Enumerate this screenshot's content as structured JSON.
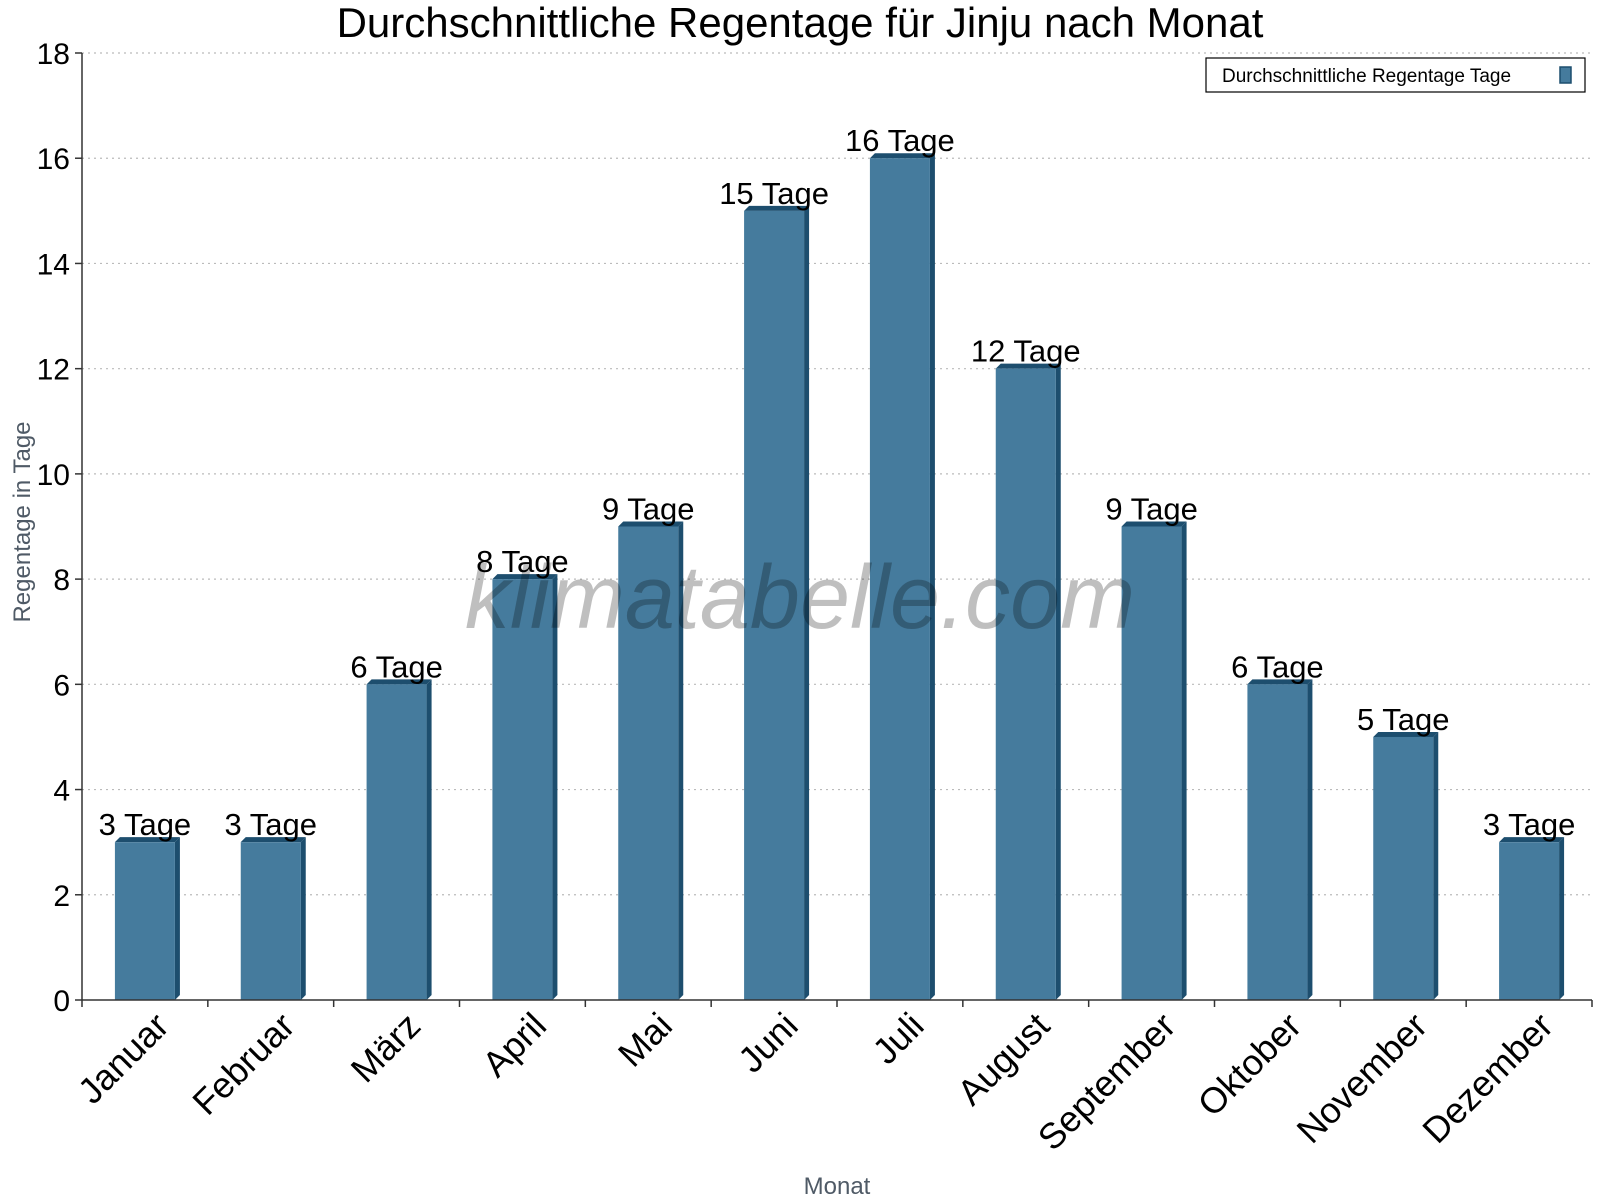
{
  "watermark": "klimatabelle.com",
  "colors": {
    "bar": "#457b9d",
    "bar_dark": "#1d4e6e",
    "grid": "#bbbbbb",
    "axis": "#333333"
  },
  "chart_data": {
    "type": "bar",
    "title": "Durchschnittliche Regentage für Jinju nach Monat",
    "xlabel": "Monat",
    "ylabel": "Regentage in Tage",
    "ylim": [
      0,
      18
    ],
    "yticks": [
      0,
      2,
      4,
      6,
      8,
      10,
      12,
      14,
      16,
      18
    ],
    "grid": true,
    "legend_position": "top-right",
    "categories": [
      "Januar",
      "Februar",
      "März",
      "April",
      "Mai",
      "Juni",
      "Juli",
      "August",
      "September",
      "Oktober",
      "November",
      "Dezember"
    ],
    "series": [
      {
        "name": "Durchschnittliche Regentage Tage",
        "values": [
          3,
          3,
          6,
          8,
          9,
          15,
          16,
          12,
          9,
          6,
          5,
          3
        ],
        "labels": [
          "3 Tage",
          "3 Tage",
          "6 Tage",
          "8 Tage",
          "9 Tage",
          "15 Tage",
          "16 Tage",
          "12 Tage",
          "9 Tage",
          "6 Tage",
          "5 Tage",
          "3 Tage"
        ]
      }
    ]
  }
}
